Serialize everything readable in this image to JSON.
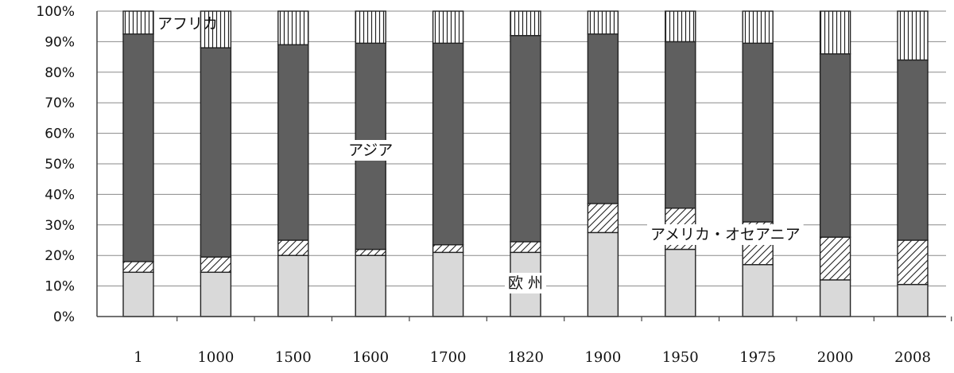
{
  "chart_data": {
    "type": "bar",
    "stacked": true,
    "percent": true,
    "title": "",
    "xlabel": "",
    "ylabel": "",
    "ylim": [
      0,
      100
    ],
    "ytick_labels": [
      "0%",
      "10%",
      "20%",
      "30%",
      "40%",
      "50%",
      "60%",
      "70%",
      "80%",
      "90%",
      "100%"
    ],
    "grid": true,
    "categories": [
      "1",
      "1000",
      "1500",
      "1600",
      "1700",
      "1820",
      "1900",
      "1950",
      "1975",
      "2000",
      "2008"
    ],
    "series": [
      {
        "name": "欧 州",
        "pattern": "solid-light-gray",
        "color": "#d9d9d9",
        "values": [
          14.5,
          14.5,
          20,
          20,
          21,
          21,
          27.5,
          22,
          17,
          12,
          10.5
        ]
      },
      {
        "name": "アメリカ・オセアニア",
        "pattern": "diagonal-hatch",
        "color": "#ffffff",
        "values": [
          3.5,
          5,
          5,
          2,
          2.5,
          3.5,
          9.5,
          13.5,
          14,
          14,
          14.5
        ]
      },
      {
        "name": "アジア",
        "pattern": "solid-dark-gray",
        "color": "#5f5f5f",
        "values": [
          74.5,
          68.5,
          64,
          67.5,
          66,
          67.5,
          55.5,
          54.5,
          58.5,
          60,
          59
        ]
      },
      {
        "name": "アフリカ",
        "pattern": "vertical-lines",
        "color": "#ffffff",
        "values": [
          7.5,
          12,
          11,
          10.5,
          10.5,
          8,
          7.5,
          10,
          10.5,
          14,
          16
        ]
      }
    ],
    "annotations": [
      {
        "text": "アフリカ",
        "series": "アフリカ"
      },
      {
        "text": "アジア",
        "series": "アジア"
      },
      {
        "text": "アメリカ・オセアニア",
        "series": "アメリカ・オセアニア"
      },
      {
        "text": "欧 州",
        "series": "欧 州"
      }
    ]
  }
}
